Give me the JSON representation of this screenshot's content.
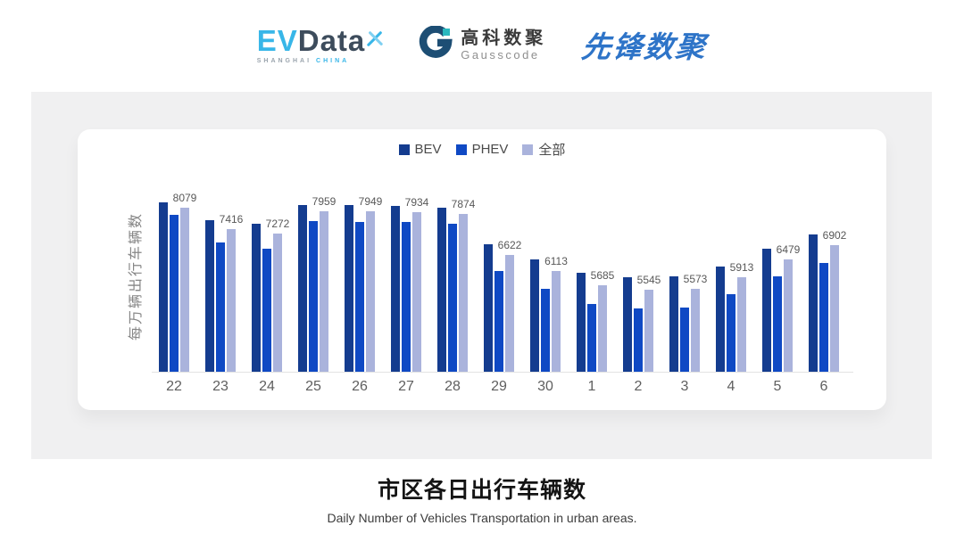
{
  "header": {
    "evdata": {
      "ev": "EV",
      "data": "Data",
      "sub_left": "SHANGHAI",
      "sub_right": "CHINA"
    },
    "gausscode": {
      "cn": "高科数聚",
      "en": "Gausscode"
    },
    "xianfeng": {
      "text": "先锋数聚"
    }
  },
  "chart_data": {
    "type": "bar",
    "title": "市区各日出行车辆数",
    "subtitle": "Daily Number of Vehicles Transportation in urban areas.",
    "ylabel": "每万辆出行车辆数",
    "xlabel": "",
    "categories": [
      "22",
      "23",
      "24",
      "25",
      "26",
      "27",
      "28",
      "29",
      "30",
      "1",
      "2",
      "3",
      "4",
      "5",
      "6"
    ],
    "series": [
      {
        "name": "BEV",
        "color": "#143c8f",
        "show_labels": false,
        "values": [
          8230,
          7690,
          7580,
          8150,
          8140,
          8130,
          8060,
          6950,
          6470,
          6060,
          5920,
          5950,
          6250,
          6810,
          7250
        ]
      },
      {
        "name": "PHEV",
        "color": "#0f49c4",
        "show_labels": false,
        "values": [
          7850,
          6990,
          6790,
          7650,
          7640,
          7630,
          7580,
          6110,
          5560,
          5100,
          4960,
          4980,
          5390,
          5960,
          6360
        ]
      },
      {
        "name": "全部",
        "color": "#aab3dc",
        "show_labels": true,
        "values": [
          8079,
          7416,
          7272,
          7959,
          7949,
          7934,
          7874,
          6622,
          6113,
          5685,
          5545,
          5573,
          5913,
          6479,
          6902
        ]
      }
    ],
    "ylim": [
      3000,
      8500
    ],
    "grid": false,
    "legend_position": "top-center"
  }
}
